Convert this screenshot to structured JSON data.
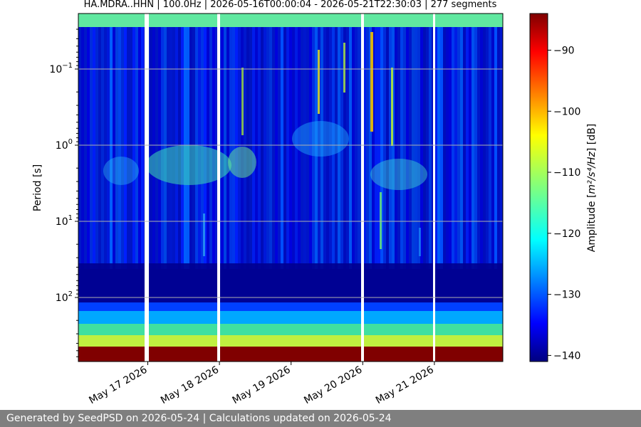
{
  "chart_data": {
    "type": "heatmap",
    "title": "HA.MDRA..HHN | 100.0Hz | 2026-05-16T00:00:04 - 2026-05-21T22:30:03 | 277 segments",
    "ylabel": "Period [s]",
    "y_scale": "log",
    "y_ticks": [
      {
        "value": 0.1,
        "base": "10",
        "exp": "−1"
      },
      {
        "value": 1,
        "base": "10",
        "exp": "0"
      },
      {
        "value": 10,
        "base": "10",
        "exp": "1"
      },
      {
        "value": 100,
        "base": "10",
        "exp": "2"
      }
    ],
    "x_ticks": [
      "May 17 2026",
      "May 18 2026",
      "May 19 2026",
      "May 20 2026",
      "May 21 2026"
    ],
    "colorbar": {
      "label_pre": "Amplitude [",
      "label_math": "m²/s⁴/Hz",
      "label_post": "] [dB]",
      "range": [
        -141,
        -84
      ],
      "ticks": [
        "−90",
        "−100",
        "−110",
        "−120",
        "−130",
        "−140"
      ],
      "colormap": "jet"
    },
    "grid": true
  },
  "footer": {
    "text": "Generated by SeedPSD on 2026-05-24 | Calculations updated on 2026-05-24"
  }
}
